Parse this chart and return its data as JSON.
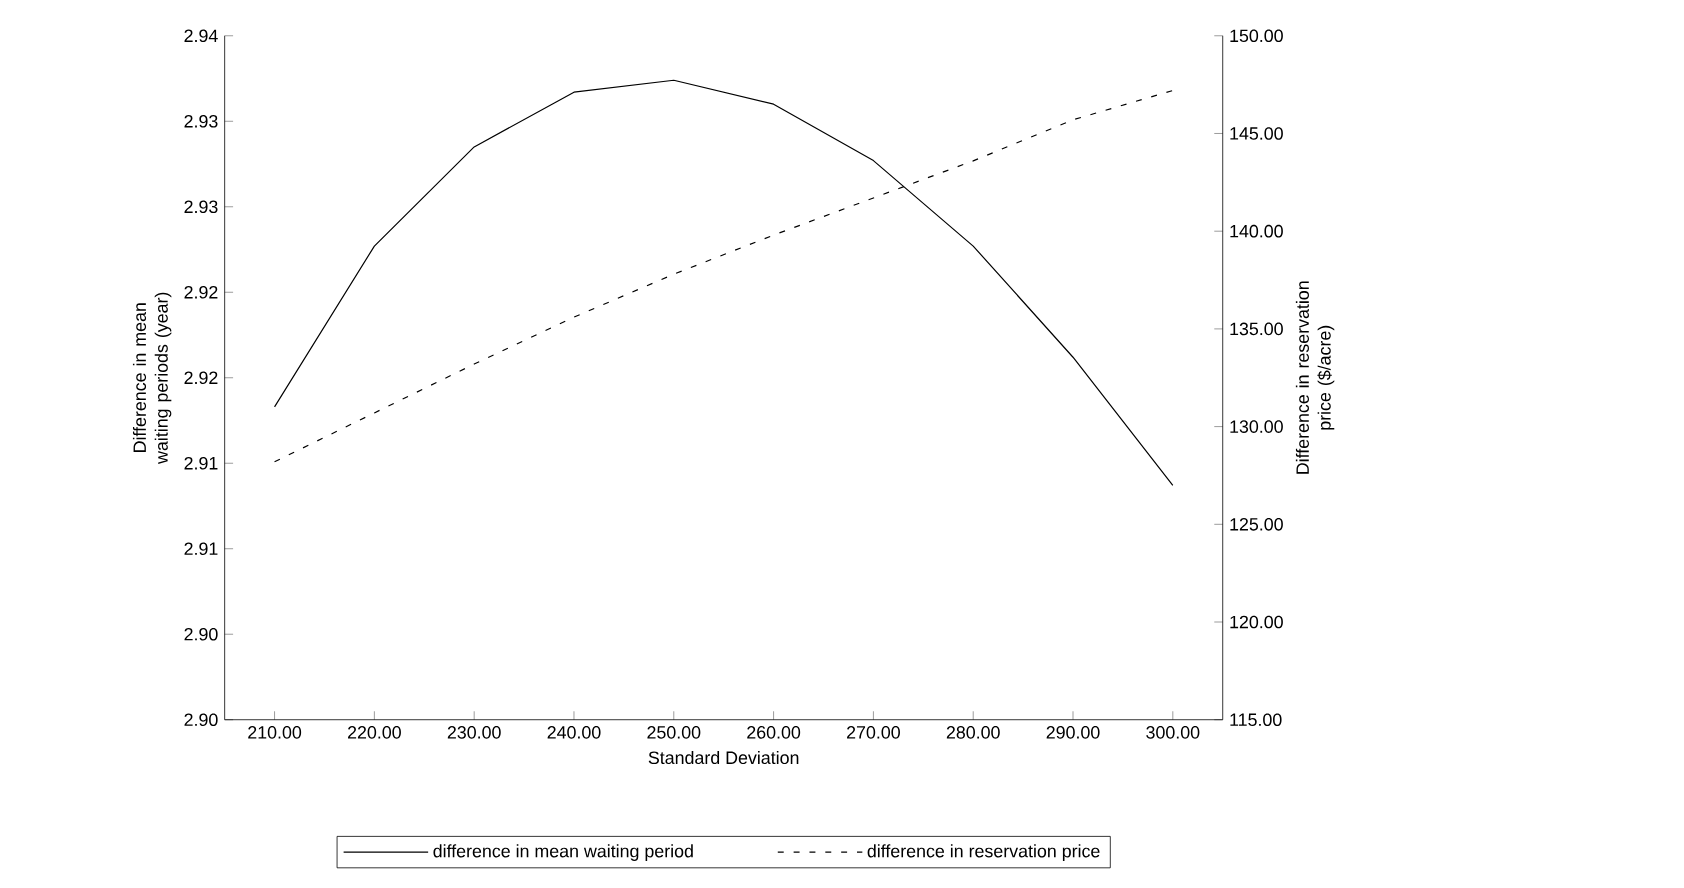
{
  "chart_data": {
    "type": "line",
    "xlabel": "Standard Deviation",
    "ylabel": "Difference in mean waiting periods (year)",
    "y2label": "Difference in reservation price ($/acre)",
    "categories": [
      "210.00",
      "220.00",
      "230.00",
      "240.00",
      "250.00",
      "260.00",
      "270.00",
      "280.00",
      "290.00",
      "300.00"
    ],
    "series": [
      {
        "name": "difference in mean waiting period",
        "color": "#000000",
        "line_style": "solid",
        "values": [
          2.9183,
          2.9277,
          2.9335,
          2.9367,
          2.9374,
          2.936,
          2.9327,
          2.9277,
          2.9212,
          2.9137
        ]
      },
      {
        "name": "difference in reservation price",
        "color": "#000000",
        "line_style": "dashed",
        "axis": "y2",
        "values": [
          128.2,
          130.7,
          133.2,
          135.6,
          137.8,
          139.8,
          141.7,
          143.6,
          145.7,
          147.2
        ]
      }
    ],
    "ylim": [
      2.9,
      2.94
    ],
    "yticks": [
      {
        "value": 2.9,
        "label": "2.90"
      },
      {
        "value": 2.905,
        "label": "2.90"
      },
      {
        "value": 2.91,
        "label": "2.91"
      },
      {
        "value": 2.915,
        "label": "2.91"
      },
      {
        "value": 2.92,
        "label": "2.92"
      },
      {
        "value": 2.925,
        "label": "2.92"
      },
      {
        "value": 2.93,
        "label": "2.93"
      },
      {
        "value": 2.935,
        "label": "2.93"
      },
      {
        "value": 2.94,
        "label": "2.94"
      }
    ],
    "y2lim": [
      115,
      150
    ],
    "y2ticks": [
      {
        "value": 115,
        "label": "115.00"
      },
      {
        "value": 120,
        "label": "120.00"
      },
      {
        "value": 125,
        "label": "125.00"
      },
      {
        "value": 130,
        "label": "130.00"
      },
      {
        "value": 135,
        "label": "135.00"
      },
      {
        "value": 140,
        "label": "140.00"
      },
      {
        "value": 145,
        "label": "145.00"
      },
      {
        "value": 150,
        "label": "150.00"
      }
    ],
    "grid": false,
    "legend": "bottom",
    "marker": "none"
  }
}
